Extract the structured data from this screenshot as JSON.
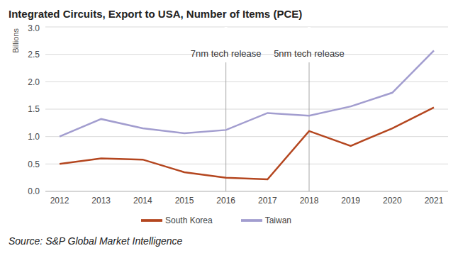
{
  "chart_data": {
    "type": "line",
    "title": "Integrated Circuits, Export to USA, Number of Items (PCE)",
    "y_label": "Billions",
    "source": "Source: S&P Global Market Intelligence",
    "categories": [
      "2012",
      "2013",
      "2014",
      "2015",
      "2016",
      "2017",
      "2018",
      "2019",
      "2020",
      "2021"
    ],
    "series": [
      {
        "name": "Taiwan",
        "color": "#a29dcf",
        "values": [
          1.0,
          1.32,
          1.15,
          1.06,
          1.12,
          1.43,
          1.38,
          1.55,
          1.8,
          2.57
        ]
      },
      {
        "name": "South Korea",
        "color": "#b4461f",
        "values": [
          0.5,
          0.6,
          0.58,
          0.35,
          0.25,
          0.22,
          1.1,
          0.83,
          1.15,
          1.53
        ]
      }
    ],
    "annotations": [
      {
        "x": "2016",
        "text": "7nm tech release"
      },
      {
        "x": "2018",
        "text": "5nm tech release"
      }
    ],
    "ylim": [
      0,
      3
    ],
    "yticks": [
      {
        "value": 0,
        "label": "0.0"
      },
      0.5,
      {
        "value": 1,
        "label": "1.0"
      },
      1.5,
      {
        "value": 2,
        "label": "2.0"
      },
      2.5,
      {
        "value": 3,
        "label": "3.0"
      }
    ],
    "grid": true,
    "legend": "bottom"
  }
}
